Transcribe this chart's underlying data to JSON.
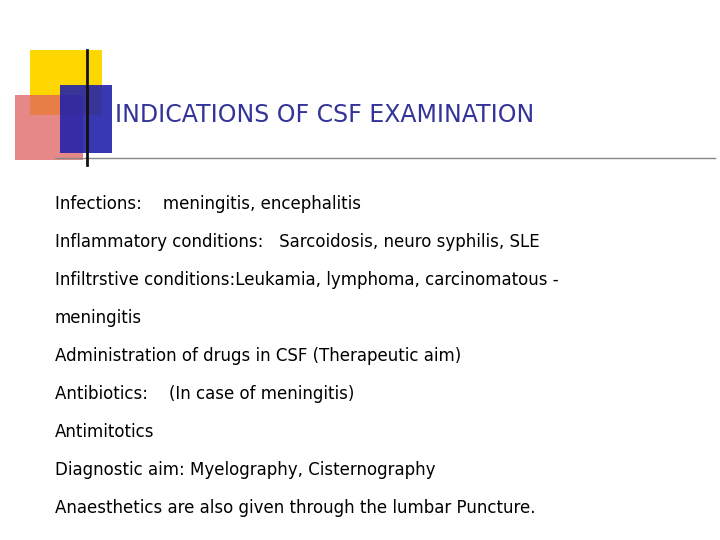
{
  "title": "INDICATIONS OF CSF EXAMINATION",
  "title_color": "#333399",
  "title_fontsize": 17,
  "body_lines": [
    "Infections:    meningitis, encephalitis",
    "Inflammatory conditions:   Sarcoidosis, neuro syphilis, SLE",
    "Infiltrstive conditions:Leukamia, lymphoma, carcinomatous -",
    "meningitis",
    "Administration of drugs in CSF (Therapeutic aim)",
    "Antibiotics:    (In case of meningitis)",
    "Antimitotics",
    "Diagnostic aim: Myelography, Cisternography",
    "Anaesthetics are also given through the lumbar Puncture."
  ],
  "body_fontsize": 12,
  "body_color": "#000000",
  "background_color": "#ffffff",
  "title_color_hex": "#333399",
  "line_color": "#888888",
  "yellow_color": "#FFD700",
  "red_color": "#E06060",
  "blue_color": "#2222AA"
}
